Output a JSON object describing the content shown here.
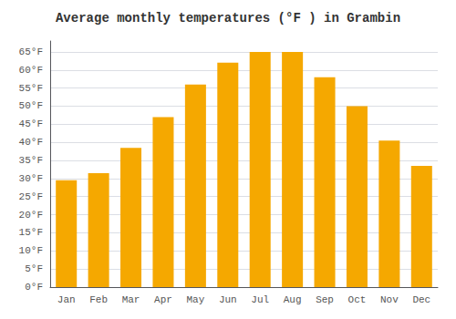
{
  "chart_data": {
    "type": "bar",
    "title": "Average monthly temperatures (°F ) in Grambin",
    "categories": [
      "Jan",
      "Feb",
      "Mar",
      "Apr",
      "May",
      "Jun",
      "Jul",
      "Aug",
      "Sep",
      "Oct",
      "Nov",
      "Dec"
    ],
    "values": [
      29.5,
      31.5,
      38.5,
      47.0,
      56.0,
      62.0,
      65.0,
      65.0,
      58.0,
      50.0,
      40.5,
      33.5
    ],
    "color": "#F5A800",
    "ylim": [
      0,
      68
    ],
    "yticks": [
      {
        "value": 0,
        "label": "0°F"
      },
      {
        "value": 5,
        "label": "5°F"
      },
      {
        "value": 10,
        "label": "10°F"
      },
      {
        "value": 15,
        "label": "15°F"
      },
      {
        "value": 20,
        "label": "20°F"
      },
      {
        "value": 25,
        "label": "25°F"
      },
      {
        "value": 30,
        "label": "30°F"
      },
      {
        "value": 35,
        "label": "35°F"
      },
      {
        "value": 40,
        "label": "40°F"
      },
      {
        "value": 45,
        "label": "45°F"
      },
      {
        "value": 50,
        "label": "50°F"
      },
      {
        "value": 55,
        "label": "55°F"
      },
      {
        "value": 60,
        "label": "60°F"
      },
      {
        "value": 65,
        "label": "65°F"
      }
    ],
    "grid": true
  }
}
